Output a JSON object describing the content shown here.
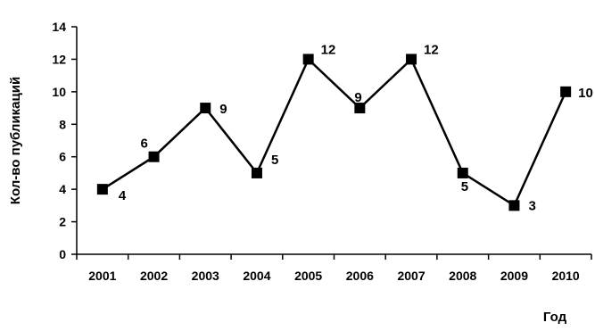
{
  "chart_data": {
    "type": "line",
    "title": "",
    "xlabel": "Год",
    "ylabel": "Кол-во публикаций",
    "categories": [
      "2001",
      "2002",
      "2003",
      "2004",
      "2005",
      "2006",
      "2007",
      "2008",
      "2009",
      "2010"
    ],
    "series": [
      {
        "values": [
          4,
          6,
          9,
          5,
          12,
          9,
          12,
          5,
          3,
          10
        ],
        "data_labels": [
          "4",
          "6",
          "9",
          "5",
          "12",
          "9",
          "12",
          "5",
          "3",
          "10"
        ],
        "marker": "square",
        "color": "#000000"
      }
    ],
    "ylim": [
      0,
      14
    ],
    "yticks": [
      "0",
      "2",
      "4",
      "6",
      "8",
      "10",
      "12",
      "14"
    ],
    "grid": false,
    "legend": "none"
  }
}
